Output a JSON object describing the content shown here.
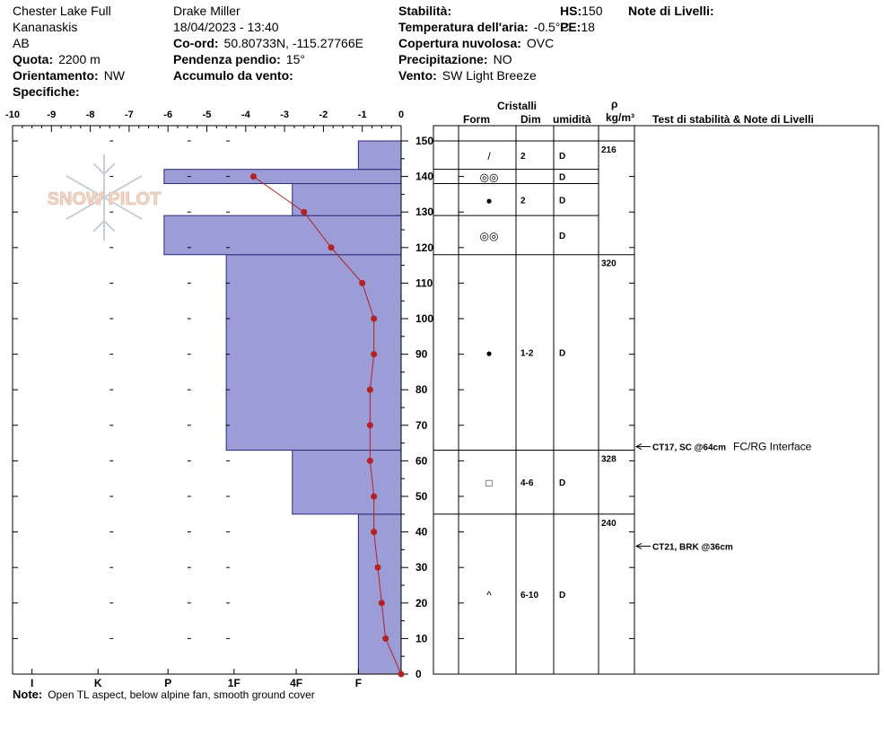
{
  "header": {
    "location_name": "Chester Lake Full",
    "region": "Kananaskis",
    "province": "AB",
    "elevation_label": "Quota:",
    "elevation_value": "2200 m",
    "aspect_label": "Orientamento:",
    "aspect_value": "NW",
    "specifics_label": "Specifiche:",
    "observer": "Drake Miller",
    "datetime": "18/04/2023 - 13:40",
    "coords_label": "Co-ord:",
    "coords_value": "50.80733N, -115.27766E",
    "slope_label": "Pendenza pendio:",
    "slope_value": "15°",
    "wind_loading_label": "Accumulo da vento:",
    "stability_label": "Stabilità:",
    "air_temp_label": "Temperatura dell'aria:",
    "air_temp_value": "-0.5°C",
    "cloud_label": "Copertura nuvolosa:",
    "cloud_value": "OVC",
    "precip_label": "Precipitazione:",
    "precip_value": "NO",
    "wind_label": "Vento:",
    "wind_value": "SW Light Breeze",
    "hs_label": "HS:",
    "hs_value": "150",
    "pe_label": "PE:",
    "pe_value": "18",
    "layer_notes_label": "Note di Livelli:"
  },
  "watermark": {
    "text": "SNOW PILOT"
  },
  "colors": {
    "hardness_fill": "#9c9cd6",
    "temp_line": "#b22222",
    "axis": "#000000"
  },
  "chart_data": {
    "type": "bar",
    "temperature_axis": {
      "min": -10,
      "max": 0,
      "ticks": [
        "-10",
        "-9",
        "-8",
        "-7",
        "-6",
        "-5",
        "-4",
        "-3",
        "-2",
        "-1",
        "0"
      ]
    },
    "height_axis": {
      "min": 0,
      "max": 150,
      "ticks": [
        "0",
        "10",
        "20",
        "30",
        "40",
        "50",
        "60",
        "70",
        "80",
        "90",
        "100",
        "110",
        "120",
        "130",
        "140",
        "150"
      ]
    },
    "hardness_axis": {
      "labels": [
        "I",
        "K",
        "P",
        "1F",
        "4F",
        "F"
      ],
      "label_temp_positions": [
        -9.5,
        -7.8,
        -6,
        -4.3,
        -2.7,
        -1.1
      ]
    },
    "hardness_layers": [
      {
        "bottom": 0,
        "top": 45,
        "extent": -1.1
      },
      {
        "bottom": 45,
        "top": 63,
        "extent": -2.8
      },
      {
        "bottom": 63,
        "top": 118,
        "extent": -4.5
      },
      {
        "bottom": 118,
        "top": 129,
        "extent": -6.1
      },
      {
        "bottom": 129,
        "top": 138,
        "extent": -2.8
      },
      {
        "bottom": 138,
        "top": 142,
        "extent": -6.1
      },
      {
        "bottom": 142,
        "top": 150,
        "extent": -1.1
      }
    ],
    "temperature_profile": {
      "heights": [
        0,
        10,
        20,
        30,
        40,
        50,
        60,
        70,
        80,
        90,
        100,
        110,
        120,
        130,
        140
      ],
      "temps": [
        0,
        -0.4,
        -0.5,
        -0.6,
        -0.7,
        -0.7,
        -0.8,
        -0.8,
        -0.8,
        -0.7,
        -0.7,
        -1.0,
        -1.8,
        -2.5,
        -3.8
      ]
    }
  },
  "table": {
    "col_cristalli": "Cristalli",
    "col_form": "Form",
    "col_dim": "Dim",
    "col_umidita": "umidità",
    "col_rho": "ρ",
    "col_density_unit": "kg/m³",
    "col_tests": "Test di stabilità & Note di Livelli",
    "layers": [
      {
        "top": 150,
        "bottom": 142,
        "form": "/",
        "dim": "2",
        "moisture": "D"
      },
      {
        "top": 142,
        "bottom": 138,
        "form": "◎◎",
        "dim": "",
        "moisture": "D"
      },
      {
        "top": 138,
        "bottom": 129,
        "form": "●",
        "dim": "2",
        "moisture": "D"
      },
      {
        "top": 129,
        "bottom": 118,
        "form": "◎◎",
        "dim": "",
        "moisture": "D"
      },
      {
        "top": 118,
        "bottom": 63,
        "form": "●",
        "dim": "1-2",
        "moisture": "D"
      },
      {
        "top": 63,
        "bottom": 45,
        "form": "□",
        "dim": "4-6",
        "moisture": "D"
      },
      {
        "top": 45,
        "bottom": 0,
        "form": "^",
        "dim": "6-10",
        "moisture": "D"
      }
    ],
    "densities": [
      {
        "height": 150,
        "value": "216"
      },
      {
        "height": 118,
        "value": "320"
      },
      {
        "height": 63,
        "value": "328"
      },
      {
        "height": 45,
        "value": "240"
      }
    ],
    "tests": [
      {
        "height": 64,
        "result": "CT17, SC @64cm",
        "note": "FC/RG Interface"
      },
      {
        "height": 36,
        "result": "CT21, BRK @36cm",
        "note": ""
      }
    ]
  },
  "footer": {
    "note_label": "Note:",
    "note_text": "Open TL aspect, below alpine fan, smooth ground cover"
  }
}
